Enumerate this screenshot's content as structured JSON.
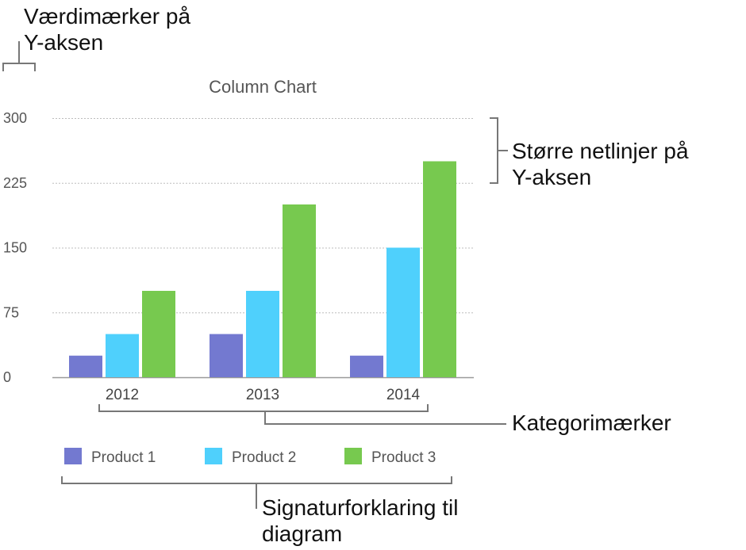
{
  "annotations": {
    "value_labels": {
      "line1": "Værdimærker på",
      "line2": "Y-aksen"
    },
    "major_gridlines": {
      "line1": "Større netlinjer på",
      "line2": "Y-aksen"
    },
    "category_labels": {
      "line1": "Kategorimærker"
    },
    "legend": {
      "line1": "Signaturforklaring til",
      "line2": "diagram"
    }
  },
  "colors": {
    "Product 1": "#7379d0",
    "Product 2": "#4fd0fc",
    "Product 3": "#77c94f",
    "gridline": "#bdbdbd",
    "axis": "#9a9a9a",
    "bracket": "#777777"
  },
  "chart_data": {
    "type": "bar",
    "title": "Column Chart",
    "categories": [
      "2012",
      "2013",
      "2014"
    ],
    "series": [
      {
        "name": "Product 1",
        "values": [
          25,
          50,
          25
        ]
      },
      {
        "name": "Product 2",
        "values": [
          50,
          100,
          150
        ]
      },
      {
        "name": "Product 3",
        "values": [
          100,
          200,
          250
        ]
      }
    ],
    "yticks": [
      "0",
      "75",
      "150",
      "225",
      "300"
    ],
    "ylim": [
      0,
      300
    ],
    "grid": true,
    "legend": "bottom"
  }
}
